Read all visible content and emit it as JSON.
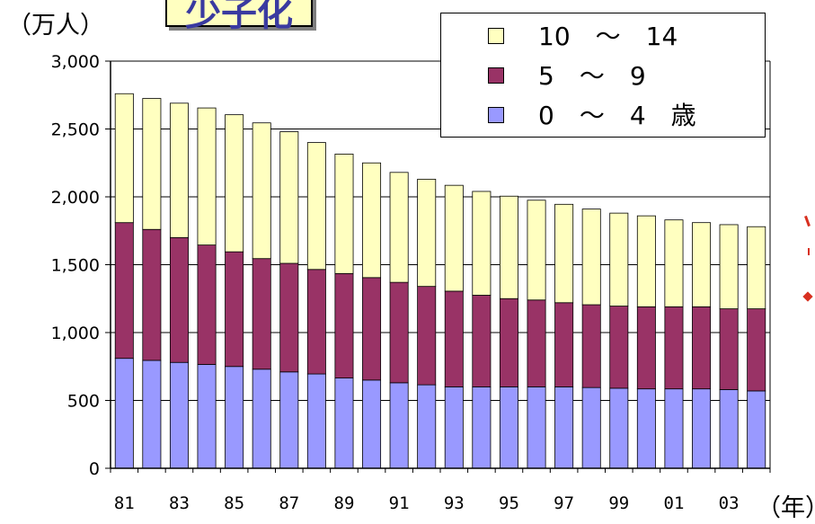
{
  "title": "少子化",
  "y_unit_label": "（万人）",
  "x_unit_label": "（年）",
  "colors": {
    "age_10_14": "#ffffc0",
    "age_5_9": "#993366",
    "age_0_4": "#9999ff",
    "accent": "#d83020"
  },
  "chart_data": {
    "type": "bar",
    "stacked": true,
    "categories": [
      "81",
      "82",
      "83",
      "84",
      "85",
      "86",
      "87",
      "88",
      "89",
      "90",
      "91",
      "92",
      "93",
      "94",
      "95",
      "96",
      "97",
      "98",
      "99",
      "00",
      "01",
      "02",
      "03",
      "04"
    ],
    "x_tick_labels": [
      "81",
      "83",
      "85",
      "87",
      "89",
      "91",
      "93",
      "95",
      "97",
      "99",
      "01",
      "03"
    ],
    "y_tick_labels": [
      "0",
      "500",
      "1,000",
      "1,500",
      "2,000",
      "2,500",
      "3,000"
    ],
    "ylim": [
      0,
      3000
    ],
    "grid": true,
    "legend_position": "top-right",
    "series": [
      {
        "name": "0　～　4　歳",
        "color_key": "age_0_4",
        "values": [
          810,
          795,
          780,
          765,
          750,
          730,
          710,
          695,
          665,
          650,
          630,
          615,
          600,
          600,
          600,
          600,
          600,
          595,
          590,
          585,
          585,
          585,
          580,
          570
        ]
      },
      {
        "name": "5　～　9",
        "color_key": "age_5_9",
        "values": [
          1000,
          965,
          920,
          880,
          845,
          815,
          800,
          770,
          770,
          755,
          740,
          725,
          705,
          675,
          650,
          640,
          620,
          610,
          605,
          605,
          605,
          605,
          595,
          605
        ]
      },
      {
        "name": "10　～　14",
        "color_key": "age_10_14",
        "values": [
          950,
          965,
          990,
          1010,
          1010,
          1000,
          970,
          935,
          880,
          845,
          810,
          790,
          780,
          765,
          755,
          735,
          725,
          705,
          685,
          670,
          640,
          620,
          620,
          605
        ]
      }
    ]
  }
}
